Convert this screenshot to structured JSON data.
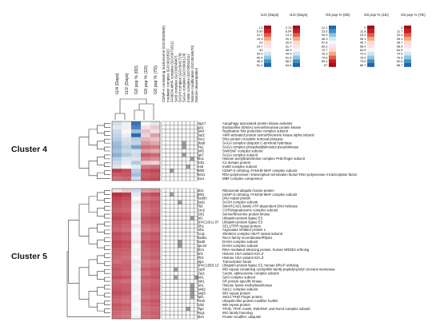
{
  "clusters": [
    {
      "label": "Cluster 4"
    },
    {
      "label": "Cluster 5"
    }
  ],
  "heatmap_columns": [
    "t1/4 (Days)",
    "t1/2 (Days)",
    "G0 pop % (0D)",
    "G0 pop % (1D)",
    "G0 pop % (7D)"
  ],
  "complex_columns": [
    "CENP-A containing nucleosome (GO:0043505)",
    "mediator complex (GO:0016592)",
    "FANCM-MHF complex (GO:0071821)",
    "Set3 complex (GO:0034967)",
    "DASH complex (GO:0042729)",
    "SAGA complex (GO:0000124)",
    "Ino80 complex (GO:0031011)",
    "histone modification (GO:0016570)",
    "histone deacetylation"
  ],
  "legend": [
    {
      "header": "t1/4 (Days)",
      "values": [
        "1.3",
        "5.99",
        "10.7",
        "15.3",
        "20",
        "24.7",
        "30",
        "35.3",
        "40.6",
        "45.9",
        "51.2"
      ]
    },
    {
      "header": "t1/2 (Days)",
      "values": [
        "2.74",
        "8.54",
        "14.3",
        "20.1",
        "25.9",
        "31.7",
        "38.3",
        "44.9",
        "51.6",
        "58.2",
        "64.8"
      ]
    },
    {
      "header": "G0 pop % (0D)",
      "values": [
        "12.1",
        "23.5",
        "34.9",
        "46.3",
        "57.8",
        "69.2",
        "72.7",
        "76.3",
        "79.8",
        "83.4",
        "87"
      ]
    },
    {
      "header": "G0 pop % (1D)",
      "values": [
        "0",
        "11.8",
        "23.4",
        "35.1",
        "46.7",
        "58.4",
        "64.5",
        "70.5",
        "76.6",
        "79.8",
        "85.7"
      ]
    },
    {
      "header": "G0 pop % (7D)",
      "values": [
        "0",
        "11.7",
        "23.4",
        "35.1",
        "46.7",
        "58.4",
        "64.5",
        "70.5",
        "76.6",
        "82.6",
        "88.7"
      ]
    }
  ],
  "legend_colors": [
    "#2166ac",
    "#4393c3",
    "#92c5de",
    "#d1e5f0",
    "#f7f7f7",
    "#fde0ef",
    "#fddbc7",
    "#f4a582",
    "#e0604a",
    "#c21f2a",
    "#a50f15"
  ],
  "colors": {
    "heat_low": "#2166ac",
    "heat_mid": "#f7f7f7",
    "heat_high": "#b2182b",
    "complex_fill": "#9e9e9e",
    "grid": "#555555"
  },
  "cluster4_genes": [
    {
      "gene": "Atg17",
      "desc": "Autophagy associated protein kinase activator",
      "values": [
        0.42,
        0.48,
        0.05,
        0.5,
        0.45
      ],
      "complexes": [
        0,
        0,
        0,
        0,
        0,
        0,
        0,
        0,
        0
      ]
    },
    {
      "gene": "Igo1",
      "desc": "Endosulfine (ENSA) serine/threonine protein kinase",
      "values": [
        0.45,
        0.52,
        0.1,
        0.55,
        0.6
      ],
      "complexes": [
        0,
        0,
        0,
        0,
        0,
        0,
        0,
        0,
        0
      ]
    },
    {
      "gene": "Swi3",
      "desc": "Replication fork protection complex subunit",
      "values": [
        0.4,
        0.5,
        0.3,
        0.62,
        0.55
      ],
      "complexes": [
        0,
        0,
        0,
        0,
        0,
        0,
        0,
        0,
        0
      ]
    },
    {
      "gene": "Ssp2",
      "desc": "AMP-activated protein serine/threonine kinase alpha subunit",
      "values": [
        0.38,
        0.47,
        0.02,
        0.58,
        0.7
      ],
      "complexes": [
        0,
        0,
        0,
        0,
        0,
        0,
        0,
        0,
        0
      ]
    },
    {
      "gene": "Pso2",
      "desc": "DNA-protein crosslink removal protease",
      "values": [
        0.35,
        0.42,
        0.35,
        0.65,
        0.62
      ],
      "complexes": [
        0,
        0,
        0,
        0,
        0,
        0,
        0,
        0,
        0
      ]
    },
    {
      "gene": "Ubp8",
      "desc": "SAGA complex ubiquitin C-terminal hydrolase",
      "values": [
        0.3,
        0.4,
        0.38,
        0.72,
        0.68
      ],
      "complexes": [
        0,
        0,
        0,
        0,
        0,
        1,
        0,
        0,
        0
      ]
    },
    {
      "gene": "Tra1",
      "desc": "SAGA complex phosphatidylinositol pseudokinase",
      "values": [
        0.28,
        0.36,
        0.2,
        0.8,
        0.78
      ],
      "complexes": [
        0,
        0,
        0,
        0,
        0,
        1,
        0,
        0,
        0
      ]
    },
    {
      "gene": "Snf5",
      "desc": "SWI/SNF complex subunit",
      "values": [
        0.32,
        0.4,
        0.42,
        0.7,
        0.66
      ],
      "complexes": [
        0,
        0,
        0,
        0,
        0,
        0,
        0,
        0,
        0
      ]
    },
    {
      "gene": "Spt7",
      "desc": "SAGA complex subunit",
      "values": [
        0.25,
        0.34,
        0.4,
        0.84,
        0.82
      ],
      "complexes": [
        0,
        0,
        0,
        0,
        0,
        1,
        0,
        0,
        0
      ]
    },
    {
      "gene": "Nto1",
      "desc": "Histone acetyltransferase complex PHD finger subunit",
      "values": [
        0.36,
        0.44,
        0.44,
        0.76,
        0.74
      ],
      "complexes": [
        0,
        0,
        0,
        0,
        0,
        0,
        0,
        1,
        0
      ]
    },
    {
      "gene": "Gdt1",
      "desc": "C2 domain protein",
      "values": [
        0.4,
        0.46,
        0.34,
        0.6,
        0.58
      ],
      "complexes": [
        0,
        0,
        0,
        0,
        0,
        0,
        0,
        0,
        0
      ]
    },
    {
      "gene": "Ies6",
      "desc": "Ino80 complex subunit",
      "values": [
        0.44,
        0.5,
        0.46,
        0.78,
        0.8
      ],
      "complexes": [
        0,
        0,
        0,
        0,
        0,
        0,
        1,
        0,
        0
      ]
    },
    {
      "gene": "Mhf2",
      "desc": "CENP-X ortholog, FANCM-MHF complex subunit",
      "values": [
        0.92,
        0.88,
        0.35,
        0.88,
        0.9
      ],
      "complexes": [
        0,
        0,
        1,
        0,
        0,
        0,
        0,
        0,
        0
      ]
    },
    {
      "gene": "Reb1",
      "desc": "RNA polymerase I transcription termination factor/ RNA polymerase II transcription factor",
      "values": [
        0.85,
        0.86,
        0.3,
        0.84,
        0.86
      ],
      "complexes": [
        0,
        0,
        0,
        0,
        0,
        0,
        0,
        0,
        0
      ]
    },
    {
      "gene": "Vox1",
      "desc": "MBF complex corepressor",
      "values": [
        0.8,
        0.82,
        0.4,
        0.86,
        0.88
      ],
      "complexes": [
        0,
        0,
        0,
        0,
        0,
        0,
        0,
        0,
        0
      ]
    }
  ],
  "cluster5_genes": [
    {
      "gene": "Ubi1",
      "desc": "Ribosomal-ubiquitin fusion protein",
      "values": [
        0.55,
        0.6,
        0.4,
        0.7,
        0.72
      ],
      "complexes": [
        0,
        0,
        0,
        0,
        0,
        0,
        0,
        0,
        0
      ]
    },
    {
      "gene": "Mhf1",
      "desc": "CENP-S ortholog, FANCM-MHF complex subunit",
      "values": [
        0.95,
        0.92,
        0.45,
        0.85,
        0.88
      ],
      "complexes": [
        0,
        0,
        1,
        0,
        0,
        0,
        0,
        0,
        0
      ]
    },
    {
      "gene": "Rad50",
      "desc": "DNA repair protein",
      "values": [
        0.9,
        0.88,
        0.5,
        0.8,
        0.82
      ],
      "complexes": [
        0,
        0,
        0,
        0,
        0,
        0,
        0,
        0,
        0
      ]
    },
    {
      "gene": "Dad1",
      "desc": "DASH complex subunit",
      "values": [
        0.88,
        0.85,
        0.55,
        0.84,
        0.86
      ],
      "complexes": [
        0,
        0,
        0,
        0,
        1,
        0,
        0,
        0,
        0
      ]
    },
    {
      "gene": "Fft3",
      "desc": "SMARCAD1 family ATP-dependent DNA helicase",
      "values": [
        0.86,
        0.84,
        0.48,
        0.82,
        0.84
      ],
      "complexes": [
        0,
        0,
        0,
        0,
        0,
        0,
        0,
        0,
        0
      ]
    },
    {
      "gene": "Csn2",
      "desc": "COP9/signalosome complex subunit",
      "values": [
        0.84,
        0.82,
        0.5,
        0.8,
        0.83
      ],
      "complexes": [
        0,
        0,
        0,
        0,
        0,
        0,
        0,
        0,
        0
      ]
    },
    {
      "gene": "Cdr2",
      "desc": "Serine/threonine protein kinase",
      "values": [
        0.87,
        0.86,
        0.52,
        0.82,
        0.85
      ],
      "complexes": [
        0,
        0,
        0,
        0,
        0,
        0,
        0,
        0,
        0
      ]
    },
    {
      "gene": "Brl1",
      "desc": "Ubiquitin-protein ligase E3",
      "values": [
        0.9,
        0.88,
        0.46,
        0.86,
        0.88
      ],
      "complexes": [
        0,
        0,
        0,
        0,
        0,
        0,
        0,
        1,
        0
      ]
    },
    {
      "gene": "SPAC23A1.07",
      "desc": "Ubiquitin-protein ligase E3",
      "values": [
        0.86,
        0.84,
        0.5,
        0.84,
        0.86
      ],
      "complexes": [
        0,
        0,
        0,
        0,
        0,
        0,
        0,
        0,
        0
      ]
    },
    {
      "gene": "Cfh1",
      "desc": "SEL1/TPR repeat protein",
      "values": [
        0.84,
        0.82,
        0.54,
        0.8,
        0.82
      ],
      "complexes": [
        0,
        0,
        0,
        0,
        0,
        0,
        0,
        0,
        0
      ]
    },
    {
      "gene": "Arb1",
      "desc": "Argonaute inhibitor protein 1",
      "values": [
        0.82,
        0.8,
        0.5,
        0.78,
        0.8
      ],
      "complexes": [
        0,
        0,
        0,
        0,
        0,
        0,
        0,
        0,
        0
      ]
    },
    {
      "gene": "Ccq1",
      "desc": "Shelterin complex HEAT repeat subunit",
      "values": [
        0.88,
        0.86,
        0.48,
        0.84,
        0.86
      ],
      "complexes": [
        0,
        0,
        0,
        0,
        0,
        0,
        0,
        0,
        0
      ]
    },
    {
      "gene": "Rad51",
      "desc": "RecA family recombinase/Rhp51",
      "values": [
        0.86,
        0.84,
        0.52,
        0.82,
        0.84
      ],
      "complexes": [
        0,
        0,
        0,
        0,
        0,
        0,
        0,
        0,
        0
      ]
    },
    {
      "gene": "Dad5",
      "desc": "DASH complex subunit",
      "values": [
        0.9,
        0.88,
        0.55,
        0.86,
        0.88
      ],
      "complexes": [
        0,
        0,
        0,
        0,
        1,
        0,
        0,
        0,
        0
      ]
    },
    {
      "gene": "Spc34",
      "desc": "DASH complex subunit",
      "values": [
        0.88,
        0.86,
        0.5,
        0.84,
        0.86
      ],
      "complexes": [
        0,
        0,
        0,
        0,
        1,
        0,
        0,
        0,
        0
      ]
    },
    {
      "gene": "Dhr1",
      "desc": "RNA-mediated silencing protein, human NRDE2 ortholog",
      "values": [
        0.85,
        0.84,
        0.48,
        0.82,
        0.84
      ],
      "complexes": [
        0,
        0,
        0,
        0,
        0,
        0,
        0,
        0,
        0
      ]
    },
    {
      "gene": "Nrl1",
      "desc": "Histone H2A variant H2A.Z",
      "values": [
        0.84,
        0.82,
        0.52,
        0.8,
        0.82
      ],
      "complexes": [
        0,
        0,
        0,
        0,
        0,
        0,
        0,
        0,
        0
      ]
    },
    {
      "gene": "Pht1",
      "desc": "Histone H2A variant H2A.Z",
      "values": [
        0.82,
        0.8,
        0.5,
        0.82,
        0.84
      ],
      "complexes": [
        0,
        0,
        0,
        0,
        0,
        0,
        0,
        0,
        0
      ]
    },
    {
      "gene": "Stp1",
      "desc": "Transcription factor",
      "values": [
        0.8,
        0.82,
        0.54,
        0.78,
        0.8
      ],
      "complexes": [
        0,
        0,
        0,
        0,
        0,
        0,
        0,
        0,
        0
      ]
    },
    {
      "gene": "SPAC16E8.13",
      "desc": "Ubiquitin-protein ligase E3, human BRAP ortholog",
      "values": [
        0.84,
        0.84,
        0.48,
        0.8,
        0.82
      ],
      "complexes": [
        0,
        0,
        0,
        0,
        0,
        0,
        0,
        0,
        0
      ]
    },
    {
      "gene": "Cyp6",
      "desc": "WD repeat containing cyclophilin family peptidyl-prolyl cis-trans isomerase",
      "values": [
        0.86,
        0.84,
        0.46,
        0.84,
        0.86
      ],
      "complexes": [
        0,
        0,
        0,
        1,
        0,
        0,
        0,
        0,
        0
      ]
    },
    {
      "gene": "Csp1",
      "desc": "Cactin, spliceosome complex subunit",
      "values": [
        0.84,
        0.82,
        0.5,
        0.8,
        0.84
      ],
      "complexes": [
        0,
        0,
        0,
        0,
        0,
        0,
        0,
        0,
        0
      ]
    },
    {
      "gene": "Snt1",
      "desc": "Set3 complex subunit",
      "values": [
        0.88,
        0.86,
        0.52,
        0.84,
        0.86
      ],
      "complexes": [
        0,
        0,
        0,
        1,
        0,
        0,
        0,
        0,
        1
      ]
    },
    {
      "gene": "Dsk1",
      "desc": "SR protein-specific kinase",
      "values": [
        0.82,
        0.8,
        0.5,
        0.8,
        0.82
      ],
      "complexes": [
        0,
        0,
        0,
        0,
        0,
        0,
        0,
        0,
        0
      ]
    },
    {
      "gene": "Set1",
      "desc": "Histone lysine methyltransferase",
      "values": [
        0.84,
        0.84,
        0.48,
        0.82,
        0.84
      ],
      "complexes": [
        0,
        0,
        0,
        0,
        0,
        0,
        0,
        1,
        0
      ]
    },
    {
      "gene": "Swd2",
      "desc": "Set1C complex subunit",
      "values": [
        0.86,
        0.84,
        0.52,
        0.84,
        0.86
      ],
      "complexes": [
        0,
        0,
        0,
        0,
        0,
        0,
        0,
        1,
        0
      ]
    },
    {
      "gene": "Swd3",
      "desc": "WD repeat protein",
      "values": [
        0.88,
        0.86,
        0.5,
        0.82,
        0.84
      ],
      "complexes": [
        0,
        0,
        0,
        0,
        0,
        0,
        0,
        1,
        0
      ]
    },
    {
      "gene": "Spf1",
      "desc": "Set1C PHD Finger protein",
      "values": [
        0.84,
        0.82,
        0.48,
        0.8,
        0.82
      ],
      "complexes": [
        0,
        0,
        0,
        0,
        0,
        0,
        0,
        1,
        0
      ]
    },
    {
      "gene": "Pmt3",
      "desc": "Ubiquitin-like protein modifier SUMO",
      "values": [
        0.82,
        0.8,
        0.52,
        0.84,
        0.86
      ],
      "complexes": [
        0,
        0,
        0,
        0,
        0,
        0,
        0,
        0,
        0
      ]
    },
    {
      "gene": "Cdt2",
      "desc": "WD repeat protein",
      "values": [
        0.86,
        0.84,
        0.5,
        0.82,
        0.84
      ],
      "complexes": [
        0,
        0,
        0,
        0,
        0,
        0,
        0,
        0,
        0
      ]
    },
    {
      "gene": "Tfg3",
      "desc": "TFIID, TFIIF, Ino80, SWI/SNF, and NuA3 complex subunit",
      "values": [
        0.84,
        0.82,
        0.48,
        0.8,
        0.82
      ],
      "complexes": [
        0,
        0,
        0,
        0,
        0,
        0,
        1,
        0,
        0
      ]
    },
    {
      "gene": "Png1",
      "desc": "ING family homolog",
      "values": [
        0.82,
        0.8,
        0.5,
        0.82,
        0.84
      ],
      "complexes": [
        0,
        0,
        0,
        0,
        0,
        0,
        0,
        0,
        0
      ]
    },
    {
      "gene": "Ubi4",
      "desc": "Protein modifier, ubiquitin",
      "values": [
        0.8,
        0.78,
        0.52,
        0.8,
        0.82
      ],
      "complexes": [
        0,
        0,
        0,
        0,
        0,
        0,
        0,
        0,
        0
      ]
    }
  ]
}
